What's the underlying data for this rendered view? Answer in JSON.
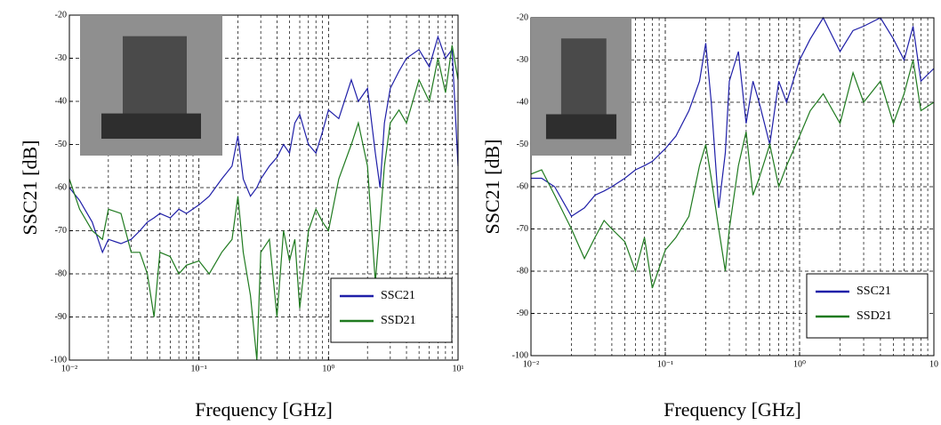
{
  "chart_data": [
    {
      "type": "line",
      "xlabel": "Frequency [GHz]",
      "ylabel": "SSC21 [dB]",
      "log_x": true,
      "grid": true,
      "legend": "lower right",
      "xlim": [
        0.01,
        10
      ],
      "ylim": [
        -100,
        -20
      ],
      "xticks": [
        {
          "value": 0.01,
          "label": "10⁻²"
        },
        {
          "value": 0.1,
          "label": "10⁻¹"
        },
        {
          "value": 1,
          "label": "10⁰"
        },
        {
          "value": 10,
          "label": "10¹"
        }
      ],
      "yticks": [
        -100,
        -90,
        -80,
        -70,
        -60,
        -50,
        -40,
        -30,
        -20
      ],
      "x": [
        0.01,
        0.012,
        0.015,
        0.018,
        0.02,
        0.025,
        0.03,
        0.035,
        0.04,
        0.045,
        0.05,
        0.06,
        0.07,
        0.08,
        0.1,
        0.12,
        0.15,
        0.18,
        0.2,
        0.22,
        0.25,
        0.28,
        0.3,
        0.35,
        0.4,
        0.45,
        0.5,
        0.55,
        0.6,
        0.7,
        0.8,
        0.9,
        1.0,
        1.2,
        1.5,
        1.7,
        2.0,
        2.3,
        2.5,
        2.7,
        3,
        3.5,
        4,
        5,
        6,
        7,
        8,
        9,
        10
      ],
      "series": [
        {
          "name": "SSC21",
          "color": "#1f1fa8",
          "values": [
            -60,
            -63,
            -68,
            -75,
            -72,
            -73,
            -72,
            -70,
            -68,
            -67,
            -66,
            -67,
            -65,
            -66,
            -64,
            -62,
            -58,
            -55,
            -48,
            -58,
            -62,
            -60,
            -58,
            -55,
            -53,
            -50,
            -52,
            -45,
            -43,
            -50,
            -52,
            -47,
            -42,
            -44,
            -35,
            -40,
            -37,
            -52,
            -60,
            -45,
            -37,
            -33,
            -30,
            -28,
            -32,
            -25,
            -30,
            -28,
            -55
          ]
        },
        {
          "name": "SSD21",
          "color": "#1f7a1f",
          "values": [
            -58,
            -65,
            -70,
            -72,
            -65,
            -66,
            -75,
            -75,
            -80,
            -90,
            -75,
            -76,
            -80,
            -78,
            -77,
            -80,
            -75,
            -72,
            -62,
            -75,
            -85,
            -100,
            -75,
            -72,
            -90,
            -70,
            -77,
            -72,
            -88,
            -70,
            -65,
            -68,
            -70,
            -58,
            -50,
            -45,
            -55,
            -82,
            -68,
            -55,
            -45,
            -42,
            -45,
            -35,
            -40,
            -30,
            -38,
            -27,
            -35
          ]
        }
      ]
    },
    {
      "type": "line",
      "xlabel": "Frequency [GHz]",
      "ylabel": "SSC21 [dB]",
      "log_x": true,
      "grid": true,
      "legend": "lower right",
      "xlim": [
        0.01,
        10
      ],
      "ylim": [
        -100,
        -20
      ],
      "xticks": [
        {
          "value": 0.01,
          "label": "10⁻²"
        },
        {
          "value": 0.1,
          "label": "10⁻¹"
        },
        {
          "value": 1,
          "label": "10⁰"
        },
        {
          "value": 10,
          "label": "10"
        }
      ],
      "yticks": [
        -100,
        -90,
        -80,
        -70,
        -60,
        -50,
        -40,
        -30,
        -20
      ],
      "x": [
        0.01,
        0.012,
        0.015,
        0.02,
        0.025,
        0.03,
        0.035,
        0.04,
        0.05,
        0.06,
        0.07,
        0.08,
        0.1,
        0.12,
        0.15,
        0.18,
        0.2,
        0.22,
        0.25,
        0.28,
        0.3,
        0.35,
        0.4,
        0.45,
        0.5,
        0.6,
        0.7,
        0.8,
        1.0,
        1.2,
        1.5,
        2,
        2.5,
        3,
        4,
        5,
        6,
        7,
        8,
        10
      ],
      "series": [
        {
          "name": "SSC21",
          "color": "#1f1fa8",
          "values": [
            -58,
            -58,
            -60,
            -67,
            -65,
            -62,
            -61,
            -60,
            -58,
            -56,
            -55,
            -54,
            -51,
            -48,
            -42,
            -35,
            -26,
            -40,
            -65,
            -52,
            -35,
            -28,
            -45,
            -35,
            -40,
            -50,
            -35,
            -40,
            -30,
            -25,
            -20,
            -28,
            -23,
            -22,
            -20,
            -25,
            -30,
            -22,
            -35,
            -32
          ]
        },
        {
          "name": "SSD21",
          "color": "#1f7a1f",
          "values": [
            -57,
            -56,
            -62,
            -70,
            -77,
            -72,
            -68,
            -70,
            -73,
            -80,
            -72,
            -84,
            -75,
            -72,
            -67,
            -55,
            -50,
            -58,
            -70,
            -80,
            -70,
            -55,
            -47,
            -62,
            -58,
            -50,
            -60,
            -55,
            -48,
            -42,
            -38,
            -45,
            -33,
            -40,
            -35,
            -45,
            -38,
            -30,
            -42,
            -40
          ]
        }
      ]
    }
  ]
}
